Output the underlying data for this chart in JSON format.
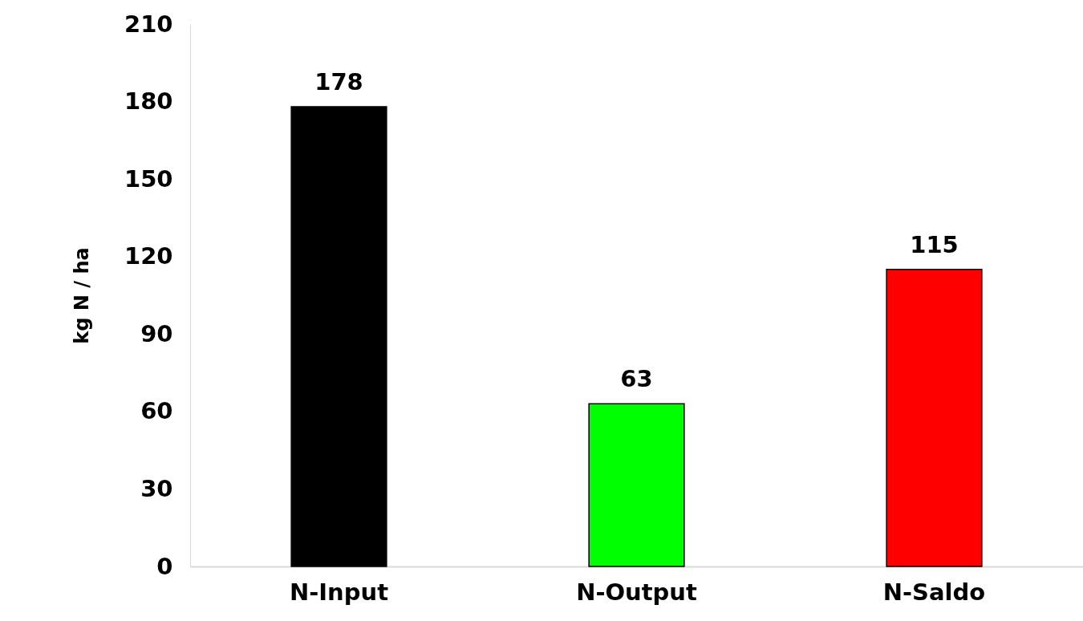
{
  "chart_data": {
    "type": "bar",
    "ylabel": "kg N / ha",
    "categories": [
      "N-Input",
      "N-Output",
      "N-Saldo"
    ],
    "values": [
      178,
      63,
      115
    ],
    "colors": [
      "#000000",
      "#00ff00",
      "#ff0000"
    ],
    "ylim": [
      0,
      210
    ],
    "yticks": [
      0,
      30,
      60,
      90,
      120,
      150,
      180,
      210
    ],
    "grid": false,
    "data_labels": true
  }
}
